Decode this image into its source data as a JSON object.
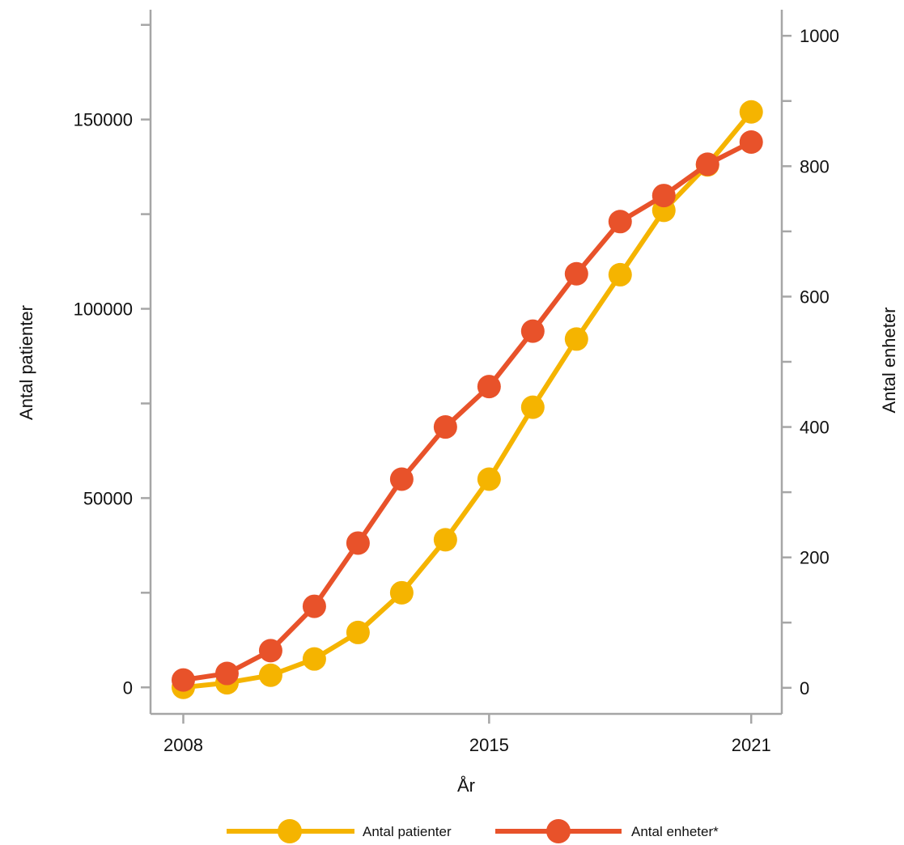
{
  "chart_data": {
    "type": "line",
    "title": "",
    "xlabel": "År",
    "ylabel_left": "Antal patienter",
    "ylabel_right": "Antal enheter",
    "x": [
      2008,
      2009,
      2010,
      2011,
      2012,
      2013,
      2014,
      2015,
      2016,
      2017,
      2018,
      2019,
      2020,
      2021
    ],
    "x_ticks": [
      2008,
      2015,
      2021
    ],
    "xlim": [
      2007.25,
      2021.7
    ],
    "y_left_ticks": [
      0,
      50000,
      100000,
      150000
    ],
    "y_left_range": [
      -7000,
      179000
    ],
    "y_right_ticks": [
      0,
      200,
      400,
      600,
      800,
      1000
    ],
    "y_right_range": [
      -40,
      1040
    ],
    "series": [
      {
        "name": "Antal patienter",
        "axis": "left",
        "color": "#F5B400",
        "values": [
          0,
          1200,
          3200,
          7500,
          14500,
          25000,
          39000,
          55000,
          74000,
          92000,
          109000,
          126000,
          138000,
          152000
        ]
      },
      {
        "name": "Antal enheter*",
        "axis": "right",
        "color": "#E8522A",
        "values": [
          12,
          22,
          57,
          125,
          222,
          320,
          400,
          462,
          547,
          635,
          715,
          755,
          803,
          837
        ]
      }
    ],
    "legend_position": "bottom",
    "grid": false
  }
}
